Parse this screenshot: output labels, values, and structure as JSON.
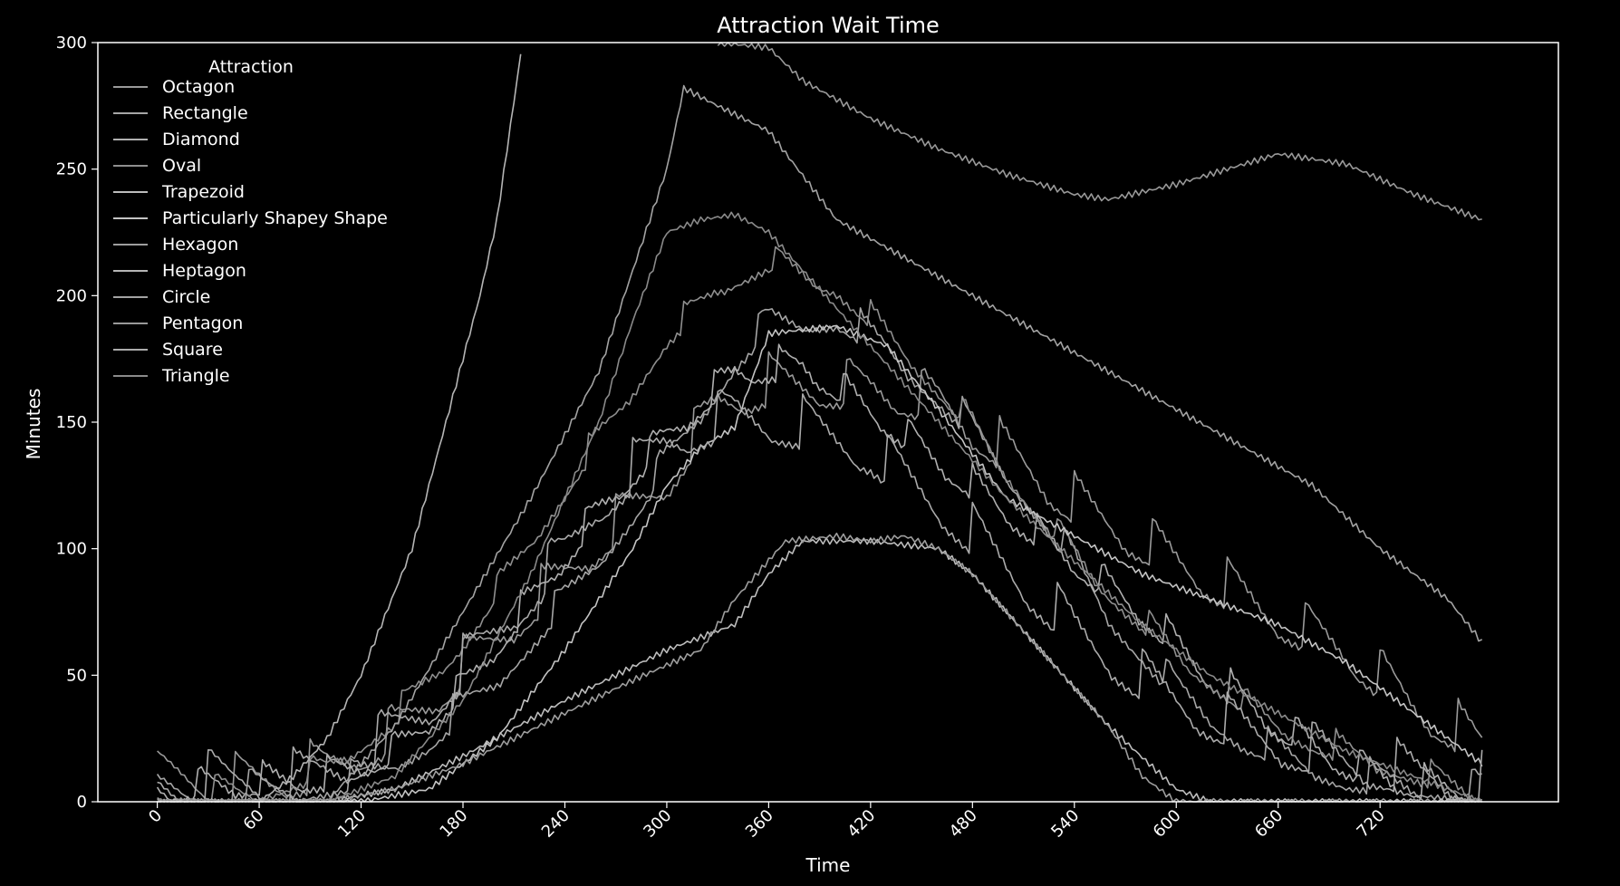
{
  "chart_data": {
    "type": "line",
    "title": "Attraction Wait Time",
    "xlabel": "Time",
    "ylabel": "Minutes",
    "xlim": [
      -35,
      825
    ],
    "ylim": [
      0,
      300
    ],
    "xticks": [
      0,
      60,
      120,
      180,
      240,
      300,
      360,
      420,
      480,
      540,
      600,
      660,
      720
    ],
    "yticks": [
      0,
      50,
      100,
      150,
      200,
      250,
      300
    ],
    "grid": false,
    "legend": {
      "title": "Attraction",
      "placement": "top-left"
    },
    "colors": {
      "background": "#000000",
      "foreground": "#ffffff",
      "lines": "#a9a9a9"
    },
    "series": [
      {
        "name": "Octagon",
        "color": "#9a9a9a",
        "sawtooth": {
          "period": 45,
          "peak": 30,
          "decay": 0.67
        },
        "points": [
          [
            0,
            0
          ],
          [
            60,
            0
          ],
          [
            100,
            5
          ],
          [
            140,
            20
          ],
          [
            180,
            45
          ],
          [
            220,
            70
          ],
          [
            260,
            95
          ],
          [
            300,
            120
          ],
          [
            330,
            150
          ],
          [
            360,
            157
          ],
          [
            420,
            156
          ],
          [
            460,
            150
          ],
          [
            500,
            130
          ],
          [
            540,
            110
          ],
          [
            580,
            95
          ],
          [
            620,
            80
          ],
          [
            660,
            65
          ],
          [
            700,
            52
          ],
          [
            740,
            30
          ],
          [
            780,
            15
          ]
        ]
      },
      {
        "name": "Rectangle",
        "color": "#a6a6a6",
        "sawtooth": {
          "period": 60,
          "peak": 28,
          "decay": 0.47
        },
        "points": [
          [
            0,
            0
          ],
          [
            80,
            0
          ],
          [
            120,
            5
          ],
          [
            160,
            20
          ],
          [
            200,
            45
          ],
          [
            240,
            75
          ],
          [
            280,
            110
          ],
          [
            320,
            150
          ],
          [
            340,
            170
          ],
          [
            360,
            185
          ],
          [
            400,
            187
          ],
          [
            430,
            175
          ],
          [
            470,
            150
          ],
          [
            520,
            110
          ],
          [
            560,
            70
          ],
          [
            600,
            40
          ],
          [
            640,
            20
          ],
          [
            700,
            5
          ],
          [
            780,
            0
          ]
        ]
      },
      {
        "name": "Diamond",
        "color": "#b0b0b0",
        "sawtooth": {
          "period": 38,
          "peak": 22,
          "decay": 0.58
        },
        "points": [
          [
            0,
            0
          ],
          [
            100,
            5
          ],
          [
            140,
            15
          ],
          [
            180,
            40
          ],
          [
            220,
            75
          ],
          [
            260,
            110
          ],
          [
            300,
            140
          ],
          [
            340,
            165
          ],
          [
            380,
            168
          ],
          [
            420,
            150
          ],
          [
            460,
            130
          ],
          [
            500,
            110
          ],
          [
            540,
            90
          ],
          [
            580,
            70
          ],
          [
            620,
            45
          ],
          [
            660,
            25
          ],
          [
            700,
            10
          ],
          [
            740,
            2
          ],
          [
            780,
            0
          ]
        ]
      },
      {
        "name": "Oval",
        "color": "#8f8f8f",
        "sawtooth": {
          "period": 55,
          "peak": 24,
          "decay": 0.44
        },
        "points": [
          [
            0,
            0
          ],
          [
            60,
            0
          ],
          [
            100,
            10
          ],
          [
            140,
            30
          ],
          [
            180,
            60
          ],
          [
            220,
            100
          ],
          [
            260,
            140
          ],
          [
            300,
            180
          ],
          [
            330,
            200
          ],
          [
            360,
            210
          ],
          [
            400,
            200
          ],
          [
            440,
            175
          ],
          [
            480,
            145
          ],
          [
            520,
            110
          ],
          [
            560,
            80
          ],
          [
            600,
            55
          ],
          [
            640,
            35
          ],
          [
            680,
            20
          ],
          [
            720,
            12
          ],
          [
            780,
            0
          ]
        ]
      },
      {
        "name": "Trapezoid",
        "color": "#bdbdbd",
        "points": [
          [
            0,
            0
          ],
          [
            100,
            0
          ],
          [
            140,
            5
          ],
          [
            180,
            18
          ],
          [
            240,
            40
          ],
          [
            300,
            60
          ],
          [
            340,
            70
          ],
          [
            360,
            90
          ],
          [
            380,
            103
          ],
          [
            420,
            103
          ],
          [
            460,
            100
          ],
          [
            480,
            90
          ],
          [
            520,
            60
          ],
          [
            560,
            30
          ],
          [
            600,
            5
          ],
          [
            620,
            0
          ],
          [
            780,
            0
          ]
        ]
      },
      {
        "name": "Particularly Shapey Shape",
        "color": "#c4c4c4",
        "points": [
          [
            0,
            0
          ],
          [
            120,
            0
          ],
          [
            160,
            5
          ],
          [
            200,
            25
          ],
          [
            240,
            60
          ],
          [
            280,
            100
          ],
          [
            300,
            125
          ],
          [
            320,
            140
          ],
          [
            340,
            148
          ],
          [
            360,
            185
          ],
          [
            400,
            188
          ],
          [
            430,
            180
          ],
          [
            460,
            155
          ],
          [
            500,
            120
          ],
          [
            540,
            105
          ],
          [
            580,
            90
          ],
          [
            620,
            80
          ],
          [
            660,
            70
          ],
          [
            700,
            55
          ],
          [
            740,
            35
          ],
          [
            780,
            15
          ]
        ]
      },
      {
        "name": "Hexagon",
        "color": "#9e9e9e",
        "points": [
          [
            0,
            0
          ],
          [
            100,
            0
          ],
          [
            140,
            5
          ],
          [
            180,
            15
          ],
          [
            240,
            35
          ],
          [
            280,
            48
          ],
          [
            320,
            60
          ],
          [
            340,
            80
          ],
          [
            370,
            103
          ],
          [
            400,
            105
          ],
          [
            420,
            103
          ],
          [
            440,
            105
          ],
          [
            460,
            100
          ],
          [
            480,
            90
          ],
          [
            520,
            60
          ],
          [
            560,
            30
          ],
          [
            580,
            10
          ],
          [
            600,
            0
          ],
          [
            780,
            0
          ]
        ]
      },
      {
        "name": "Heptagon",
        "color": "#b5b5b5",
        "points": [
          [
            60,
            0
          ],
          [
            80,
            10
          ],
          [
            100,
            25
          ],
          [
            120,
            50
          ],
          [
            150,
            100
          ],
          [
            170,
            150
          ],
          [
            190,
            200
          ],
          [
            200,
            230
          ],
          [
            215,
            300
          ]
        ]
      },
      {
        "name": "Circle",
        "color": "#a3a3a3",
        "points": [
          [
            0,
            0
          ],
          [
            100,
            0
          ],
          [
            140,
            30
          ],
          [
            180,
            75
          ],
          [
            220,
            120
          ],
          [
            260,
            170
          ],
          [
            280,
            210
          ],
          [
            300,
            250
          ],
          [
            310,
            282
          ],
          [
            330,
            275
          ],
          [
            360,
            265
          ],
          [
            400,
            230
          ],
          [
            440,
            215
          ],
          [
            480,
            200
          ],
          [
            520,
            185
          ],
          [
            560,
            170
          ],
          [
            600,
            155
          ],
          [
            640,
            140
          ],
          [
            680,
            125
          ],
          [
            720,
            100
          ],
          [
            760,
            80
          ],
          [
            780,
            63
          ]
        ]
      },
      {
        "name": "Pentagon",
        "color": "#999999",
        "points": [
          [
            330,
            300
          ],
          [
            360,
            298
          ],
          [
            380,
            285
          ],
          [
            420,
            270
          ],
          [
            460,
            258
          ],
          [
            500,
            248
          ],
          [
            540,
            240
          ],
          [
            560,
            238
          ],
          [
            600,
            244
          ],
          [
            640,
            252
          ],
          [
            660,
            256
          ],
          [
            700,
            252
          ],
          [
            740,
            240
          ],
          [
            780,
            230
          ]
        ]
      },
      {
        "name": "Square",
        "color": "#ababab",
        "sawtooth": {
          "period": 50,
          "peak": 32,
          "decay": 0.64
        },
        "points": [
          [
            0,
            0
          ],
          [
            80,
            0
          ],
          [
            120,
            10
          ],
          [
            160,
            30
          ],
          [
            200,
            60
          ],
          [
            240,
            90
          ],
          [
            260,
            110
          ],
          [
            300,
            135
          ],
          [
            340,
            145
          ],
          [
            380,
            140
          ],
          [
            420,
            130
          ],
          [
            460,
            110
          ],
          [
            500,
            85
          ],
          [
            540,
            60
          ],
          [
            580,
            40
          ],
          [
            620,
            25
          ],
          [
            660,
            15
          ],
          [
            700,
            8
          ],
          [
            740,
            3
          ],
          [
            780,
            0
          ]
        ]
      },
      {
        "name": "Triangle",
        "color": "#8a8a8a",
        "points": [
          [
            0,
            0
          ],
          [
            100,
            0
          ],
          [
            140,
            10
          ],
          [
            180,
            40
          ],
          [
            220,
            90
          ],
          [
            260,
            150
          ],
          [
            280,
            190
          ],
          [
            300,
            225
          ],
          [
            320,
            230
          ],
          [
            340,
            232
          ],
          [
            360,
            225
          ],
          [
            380,
            210
          ],
          [
            420,
            180
          ],
          [
            460,
            150
          ],
          [
            500,
            120
          ],
          [
            540,
            95
          ],
          [
            580,
            70
          ],
          [
            620,
            50
          ],
          [
            660,
            35
          ],
          [
            700,
            20
          ],
          [
            740,
            10
          ],
          [
            780,
            0
          ]
        ]
      }
    ]
  }
}
